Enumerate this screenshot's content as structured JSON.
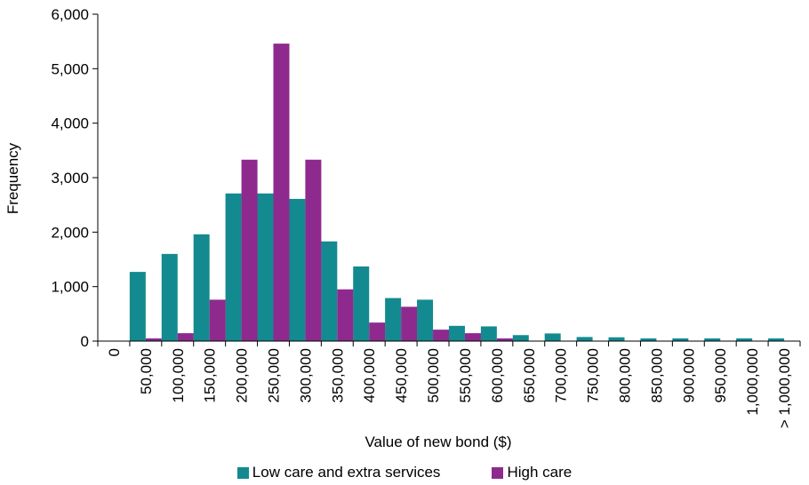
{
  "chart_data": {
    "type": "bar",
    "title": "",
    "xlabel": "Value of new bond ($)",
    "ylabel": "Frequency",
    "ylim": [
      0,
      6000
    ],
    "yticks": [
      "0",
      "1,000",
      "2,000",
      "3,000",
      "4,000",
      "5,000",
      "6,000"
    ],
    "grid": false,
    "legend_position": "bottom",
    "categories": [
      "0",
      "50,000",
      "100,000",
      "150,000",
      "200,000",
      "250,000",
      "300,000",
      "350,000",
      "400,000",
      "450,000",
      "500,000",
      "550,000",
      "600,000",
      "650,000",
      "700,000",
      "750,000",
      "800,000",
      "850,000",
      "900,000",
      "950,000",
      "1,000,000",
      "> 1,000,000"
    ],
    "series": [
      {
        "name": "Low care and extra services",
        "color": "#138A8F",
        "values": [
          0,
          1270,
          1600,
          1960,
          2710,
          2710,
          2610,
          1830,
          1370,
          790,
          760,
          280,
          270,
          110,
          140,
          75,
          70,
          50,
          50,
          50,
          50,
          50
        ]
      },
      {
        "name": "High care",
        "color": "#8E2A8E",
        "values": [
          0,
          50,
          145,
          760,
          3330,
          5460,
          3330,
          950,
          340,
          630,
          210,
          145,
          50,
          0,
          0,
          0,
          0,
          0,
          0,
          0,
          0,
          0
        ]
      }
    ]
  }
}
